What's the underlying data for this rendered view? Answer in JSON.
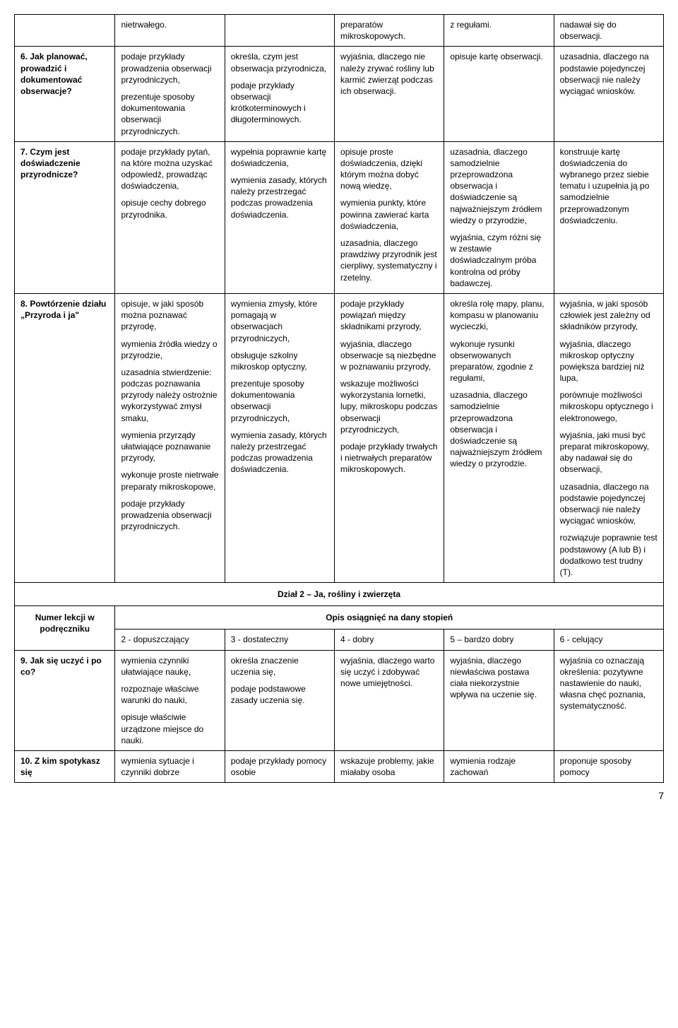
{
  "rows": [
    {
      "label": "",
      "cells": [
        "nietrwałego.",
        "",
        "preparatów mikroskopowych.",
        "z regułami.",
        "nadawał się do obserwacji."
      ]
    },
    {
      "label": "6. Jak planować, prowadzić i dokumentować obserwacje?",
      "cells": [
        "podaje przykłady prowadzenia obserwacji przyrodniczych,\nprezentuje sposoby dokumentowania obserwacji przyrodniczych.",
        "określa, czym jest obserwacja przyrodnicza,\npodaje przykłady obserwacji krótkoterminowych i długoterminowych.",
        "wyjaśnia, dlaczego nie należy zrywać rośliny lub karmić zwierząt podczas ich obserwacji.",
        "opisuje kartę obserwacji.",
        "uzasadnia, dlaczego na podstawie pojedynczej obserwacji nie należy wyciągać wniosków."
      ]
    },
    {
      "label": "7. Czym jest doświadczenie przyrodnicze?",
      "cells": [
        "podaje przykłady pytań, na które można uzyskać odpowiedź, prowadząc doświadczenia,\nopisuje cechy dobrego przyrodnika.",
        "wypełnia poprawnie kartę doświadczenia,\nwymienia zasady, których należy przestrzegać podczas prowadzenia doświadczenia.",
        "opisuje proste doświadczenia, dzięki którym można dobyć nową wiedzę,\nwymienia punkty, które powinna zawierać karta doświadczenia,\nuzasadnia, dlaczego prawdziwy przyrodnik jest cierpliwy, systematyczny i rzetelny.",
        "uzasadnia, dlaczego samodzielnie przeprowadzona obserwacja i doświadczenie są najważniejszym źródłem wiedzy o przyrodzie,\nwyjaśnia, czym różni się w zestawie doświadczalnym próba kontrolna od próby badawczej.",
        "konstruuje kartę doświadczenia do wybranego przez siebie tematu i uzupełnia ją po samodzielnie przeprowadzonym doświadczeniu."
      ]
    },
    {
      "label": "8. Powtórzenie działu „Przyroda i ja\"",
      "cells": [
        "opisuje, w jaki sposób można poznawać przyrodę,\nwymienia źródła wiedzy o przyrodzie,\nuzasadnia stwierdzenie: podczas poznawania przyrody należy ostrożnie wykorzystywać zmysł smaku,\nwymienia przyrządy ułatwiające poznawanie przyrody,\nwykonuje proste nietrwałe preparaty mikroskopowe,\npodaje przykłady prowadzenia obserwacji przyrodniczych.",
        "wymienia zmysły, które pomagają w obserwacjach przyrodniczych,\nobsługuje szkolny mikroskop optyczny,\nprezentuje sposoby dokumentowania obserwacji przyrodniczych,\nwymienia zasady, których należy przestrzegać podczas prowadzenia doświadczenia.",
        "podaje przykłady powiązań między składnikami przyrody,\nwyjaśnia, dlaczego obserwacje są niezbędne w poznawaniu przyrody,\nwskazuje możliwości wykorzystania lornetki, lupy, mikroskopu podczas obserwacji przyrodniczych,\npodaje przykłady trwałych i nietrwałych preparatów mikroskopowych.",
        "określa rolę mapy, planu, kompasu w planowaniu wycieczki,\nwykonuje rysunki obserwowanych preparatów, zgodnie z regułami,\nuzasadnia, dlaczego samodzielnie przeprowadzona obserwacja i doświadczenie są najważniejszym źródłem wiedzy o przyrodzie.",
        "wyjaśnia, w jaki sposób człowiek jest zależny od składników przyrody,\nwyjaśnia, dlaczego mikroskop optyczny powiększa bardziej niż lupa,\nporównuje możliwości mikroskopu optycznego i elektronowego,\nwyjaśnia, jaki musi być preparat mikroskopowy, aby nadawał się do obserwacji,\nuzasadnia, dlaczego na podstawie pojedynczej obserwacji nie należy wyciągać wniosków,\nrozwiązuje poprawnie test podstawowy (A lub B) i dodatkowo test trudny (T)."
      ]
    }
  ],
  "section2": {
    "title": "Dział 2 – Ja, rośliny i zwierzęta",
    "numer_label": "Numer lekcji w podręczniku",
    "opis_label": "Opis osiągnięć na dany stopień",
    "grades": [
      "2 - dopuszczający",
      "3 - dostateczny",
      "4 - dobry",
      "5 – bardzo dobry",
      "6 - celujący"
    ]
  },
  "rows2": [
    {
      "label": "9. Jak się uczyć i po co?",
      "cells": [
        "wymienia czynniki ułatwiające naukę,\nrozpoznaje właściwe warunki do nauki,\nopisuje właściwie urządzone miejsce do nauki.",
        "określa znaczenie uczenia się,\npodaje podstawowe zasady uczenia się.",
        "wyjaśnia, dlaczego warto się uczyć i zdobywać nowe umiejętności.",
        "wyjaśnia, dlaczego niewłaściwa postawa ciała niekorzystnie wpływa na uczenie się.",
        "wyjaśnia co oznaczają określenia: pozytywne nastawienie do nauki, własna chęć poznania, systematyczność."
      ]
    },
    {
      "label": "10. Z kim spotykasz się",
      "cells": [
        "wymienia sytuacje i czynniki dobrze",
        "podaje przykłady pomocy osobie",
        "wskazuje problemy, jakie miałaby osoba",
        "wymienia rodzaje zachowań",
        "proponuje sposoby pomocy"
      ]
    }
  ],
  "page_number": "7"
}
